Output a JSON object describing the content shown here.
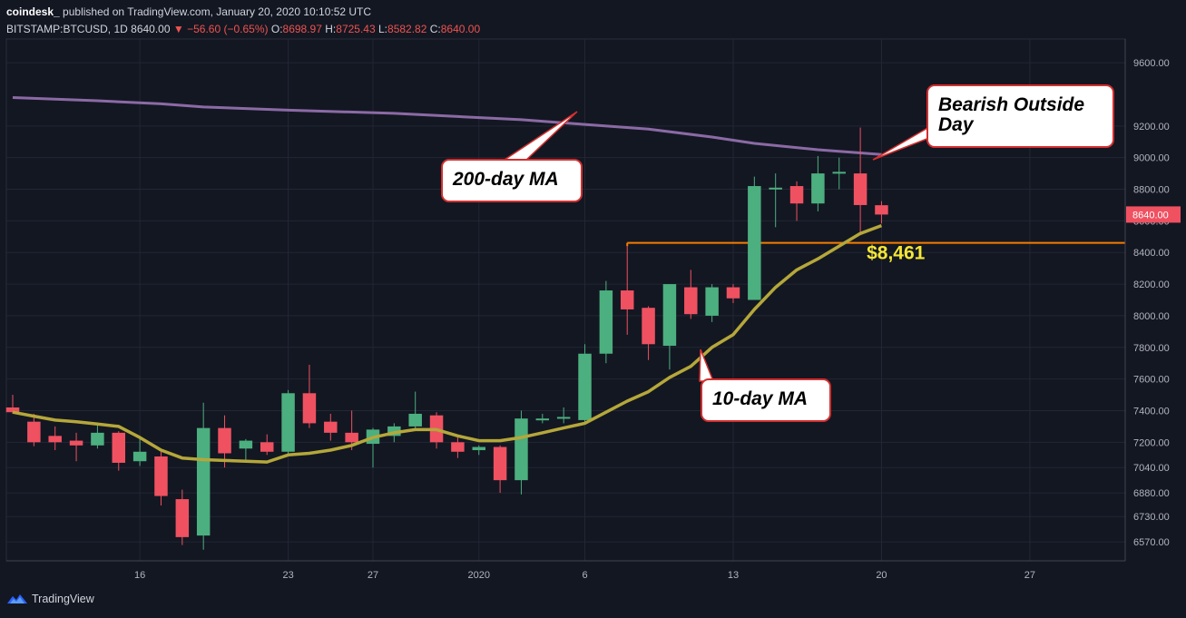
{
  "header": {
    "author": "coindesk_",
    "published": "published on TradingView.com, January 20, 2020 10:10:52 UTC",
    "symbol": "BITSTAMP:BTCUSD, 1D",
    "last": "8640.00",
    "arrow": "▼",
    "change": "−56.60 (−0.65%)",
    "o_label": "O:",
    "o": "8698.97",
    "h_label": "H:",
    "h": "8725.43",
    "l_label": "L:",
    "l": "8582.82",
    "c_label": "C:",
    "c": "8640.00"
  },
  "footer": {
    "brand": "TradingView"
  },
  "colors": {
    "up": "#4caf7f",
    "down": "#ef5161",
    "ma10": "#b5a73a",
    "ma200": "#8b6aa5",
    "level": "#f57c00",
    "bg": "#131722",
    "grid": "#232735"
  },
  "chart_data": {
    "type": "candlestick",
    "x_ticks": [
      {
        "i": 6,
        "label": "16"
      },
      {
        "i": 13,
        "label": "23"
      },
      {
        "i": 17,
        "label": "27"
      },
      {
        "i": 22,
        "label": "2020"
      },
      {
        "i": 27,
        "label": "6"
      },
      {
        "i": 34,
        "label": "13"
      },
      {
        "i": 41,
        "label": "20"
      },
      {
        "i": 48,
        "label": "27"
      }
    ],
    "y_ticks": [
      6570,
      6730,
      6880,
      7040,
      7200,
      7400,
      7600,
      7800,
      8000,
      8200,
      8400,
      8600,
      8800,
      9000,
      9200,
      9600
    ],
    "y_tick_labels": [
      "6570.00",
      "6730.00",
      "6880.00",
      "7040.00",
      "7200.00",
      "7400.00",
      "7600.00",
      "7800.00",
      "8000.00",
      "8200.00",
      "8400.00",
      "8600.00",
      "8800.00",
      "9000.00",
      "9200.00",
      "9600.00"
    ],
    "ylim": [
      6450,
      9750
    ],
    "x_range": [
      -0.3,
      52.5
    ],
    "candles": [
      {
        "i": 0,
        "o": 7420,
        "h": 7500,
        "l": 7380,
        "c": 7390
      },
      {
        "i": 1,
        "o": 7330,
        "h": 7380,
        "l": 7175,
        "c": 7200
      },
      {
        "i": 2,
        "o": 7240,
        "h": 7300,
        "l": 7150,
        "c": 7200
      },
      {
        "i": 3,
        "o": 7210,
        "h": 7260,
        "l": 7080,
        "c": 7180
      },
      {
        "i": 4,
        "o": 7180,
        "h": 7320,
        "l": 7160,
        "c": 7260
      },
      {
        "i": 5,
        "o": 7260,
        "h": 7270,
        "l": 7020,
        "c": 7070
      },
      {
        "i": 6,
        "o": 7080,
        "h": 7230,
        "l": 7050,
        "c": 7140
      },
      {
        "i": 7,
        "o": 7110,
        "h": 7140,
        "l": 6800,
        "c": 6860
      },
      {
        "i": 8,
        "o": 6840,
        "h": 6900,
        "l": 6550,
        "c": 6600
      },
      {
        "i": 9,
        "o": 6610,
        "h": 7450,
        "l": 6520,
        "c": 7290
      },
      {
        "i": 10,
        "o": 7290,
        "h": 7370,
        "l": 7040,
        "c": 7130
      },
      {
        "i": 11,
        "o": 7160,
        "h": 7220,
        "l": 7070,
        "c": 7210
      },
      {
        "i": 12,
        "o": 7200,
        "h": 7250,
        "l": 7120,
        "c": 7140
      },
      {
        "i": 13,
        "o": 7140,
        "h": 7530,
        "l": 7110,
        "c": 7510
      },
      {
        "i": 14,
        "o": 7510,
        "h": 7690,
        "l": 7290,
        "c": 7320
      },
      {
        "i": 15,
        "o": 7330,
        "h": 7380,
        "l": 7210,
        "c": 7260
      },
      {
        "i": 16,
        "o": 7260,
        "h": 7400,
        "l": 7150,
        "c": 7200
      },
      {
        "i": 17,
        "o": 7190,
        "h": 7290,
        "l": 7040,
        "c": 7280
      },
      {
        "i": 18,
        "o": 7240,
        "h": 7320,
        "l": 7200,
        "c": 7300
      },
      {
        "i": 19,
        "o": 7300,
        "h": 7520,
        "l": 7280,
        "c": 7380
      },
      {
        "i": 20,
        "o": 7370,
        "h": 7390,
        "l": 7160,
        "c": 7200
      },
      {
        "i": 21,
        "o": 7200,
        "h": 7240,
        "l": 7100,
        "c": 7140
      },
      {
        "i": 22,
        "o": 7150,
        "h": 7180,
        "l": 7120,
        "c": 7170
      },
      {
        "i": 23,
        "o": 7170,
        "h": 7180,
        "l": 6880,
        "c": 6960
      },
      {
        "i": 24,
        "o": 6960,
        "h": 7400,
        "l": 6870,
        "c": 7350
      },
      {
        "i": 25,
        "o": 7340,
        "h": 7380,
        "l": 7320,
        "c": 7350
      },
      {
        "i": 26,
        "o": 7350,
        "h": 7420,
        "l": 7320,
        "c": 7360
      },
      {
        "i": 27,
        "o": 7340,
        "h": 7820,
        "l": 7320,
        "c": 7760
      },
      {
        "i": 28,
        "o": 7760,
        "h": 8220,
        "l": 7700,
        "c": 8160
      },
      {
        "i": 29,
        "o": 8160,
        "h": 8440,
        "l": 7880,
        "c": 8040
      },
      {
        "i": 30,
        "o": 8050,
        "h": 8060,
        "l": 7720,
        "c": 7820
      },
      {
        "i": 31,
        "o": 7810,
        "h": 8200,
        "l": 7660,
        "c": 8200
      },
      {
        "i": 32,
        "o": 8180,
        "h": 8290,
        "l": 7980,
        "c": 8010
      },
      {
        "i": 33,
        "o": 8000,
        "h": 8200,
        "l": 7960,
        "c": 8180
      },
      {
        "i": 34,
        "o": 8180,
        "h": 8200,
        "l": 8080,
        "c": 8110
      },
      {
        "i": 35,
        "o": 8100,
        "h": 8880,
        "l": 8100,
        "c": 8820
      },
      {
        "i": 36,
        "o": 8810,
        "h": 8900,
        "l": 8560,
        "c": 8810
      },
      {
        "i": 37,
        "o": 8820,
        "h": 8850,
        "l": 8600,
        "c": 8710
      },
      {
        "i": 38,
        "o": 8710,
        "h": 9010,
        "l": 8660,
        "c": 8900
      },
      {
        "i": 39,
        "o": 8910,
        "h": 9000,
        "l": 8800,
        "c": 8910
      },
      {
        "i": 40,
        "o": 8900,
        "h": 9190,
        "l": 8530,
        "c": 8700
      },
      {
        "i": 41,
        "o": 8699,
        "h": 8725,
        "l": 8583,
        "c": 8640
      }
    ],
    "ma10": [
      {
        "i": 0,
        "v": 7390
      },
      {
        "i": 1,
        "v": 7365
      },
      {
        "i": 2,
        "v": 7340
      },
      {
        "i": 3,
        "v": 7330
      },
      {
        "i": 4,
        "v": 7315
      },
      {
        "i": 5,
        "v": 7300
      },
      {
        "i": 6,
        "v": 7230
      },
      {
        "i": 7,
        "v": 7150
      },
      {
        "i": 8,
        "v": 7100
      },
      {
        "i": 9,
        "v": 7090
      },
      {
        "i": 10,
        "v": 7085
      },
      {
        "i": 11,
        "v": 7080
      },
      {
        "i": 12,
        "v": 7075
      },
      {
        "i": 13,
        "v": 7120
      },
      {
        "i": 14,
        "v": 7130
      },
      {
        "i": 15,
        "v": 7150
      },
      {
        "i": 16,
        "v": 7180
      },
      {
        "i": 17,
        "v": 7230
      },
      {
        "i": 18,
        "v": 7260
      },
      {
        "i": 19,
        "v": 7280
      },
      {
        "i": 20,
        "v": 7280
      },
      {
        "i": 21,
        "v": 7240
      },
      {
        "i": 22,
        "v": 7210
      },
      {
        "i": 23,
        "v": 7210
      },
      {
        "i": 24,
        "v": 7230
      },
      {
        "i": 25,
        "v": 7260
      },
      {
        "i": 26,
        "v": 7290
      },
      {
        "i": 27,
        "v": 7320
      },
      {
        "i": 28,
        "v": 7390
      },
      {
        "i": 29,
        "v": 7460
      },
      {
        "i": 30,
        "v": 7520
      },
      {
        "i": 31,
        "v": 7610
      },
      {
        "i": 32,
        "v": 7680
      },
      {
        "i": 33,
        "v": 7800
      },
      {
        "i": 34,
        "v": 7880
      },
      {
        "i": 35,
        "v": 8040
      },
      {
        "i": 36,
        "v": 8180
      },
      {
        "i": 37,
        "v": 8290
      },
      {
        "i": 38,
        "v": 8360
      },
      {
        "i": 39,
        "v": 8440
      },
      {
        "i": 40,
        "v": 8520
      },
      {
        "i": 41,
        "v": 8570
      }
    ],
    "ma200": [
      {
        "i": 0,
        "v": 9380
      },
      {
        "i": 4,
        "v": 9360
      },
      {
        "i": 7,
        "v": 9340
      },
      {
        "i": 9,
        "v": 9320
      },
      {
        "i": 13,
        "v": 9300
      },
      {
        "i": 18,
        "v": 9280
      },
      {
        "i": 21,
        "v": 9260
      },
      {
        "i": 24,
        "v": 9240
      },
      {
        "i": 27,
        "v": 9210
      },
      {
        "i": 30,
        "v": 9180
      },
      {
        "i": 33,
        "v": 9130
      },
      {
        "i": 35,
        "v": 9090
      },
      {
        "i": 38,
        "v": 9050
      },
      {
        "i": 41,
        "v": 9020
      }
    ],
    "level": {
      "value": 8461,
      "from_i": 29,
      "to_i": 52.5,
      "label": "$8,461"
    },
    "last_price": {
      "value": 8640,
      "label": "8640.00"
    },
    "annotations": [
      {
        "id": "ma200",
        "text": "200-day MA"
      },
      {
        "id": "ma10",
        "text": "10-day MA"
      },
      {
        "id": "bod",
        "text": "Bearish Outside Day"
      }
    ]
  }
}
